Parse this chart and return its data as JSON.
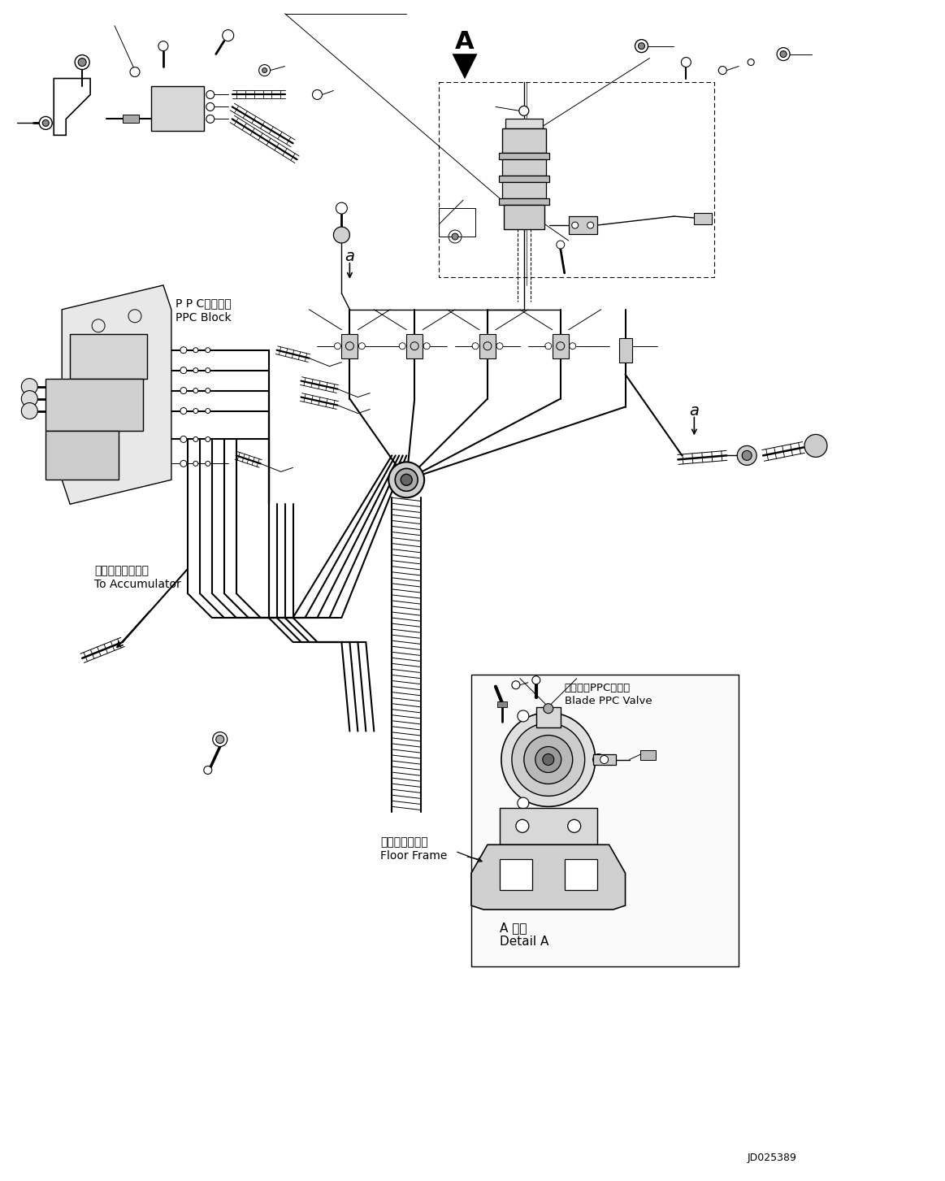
{
  "fig_width": 11.63,
  "fig_height": 14.53,
  "dpi": 100,
  "bg_color": "#ffffff",
  "line_color": "#000000",
  "diagram_id": "JD025389",
  "labels": {
    "ppc_block_ja": "P P Cブロック",
    "ppc_block_en": "PPC Block",
    "accumulator_ja": "アキュムレータへ",
    "accumulator_en": "To Accumulator",
    "floor_frame_ja": "フロアフレーム",
    "floor_frame_en": "Floor Frame",
    "blade_ppc_ja": "ブレードPPCバルブ",
    "blade_ppc_en": "Blade PPC Valve",
    "detail_a_ja": "A 詳細",
    "detail_a_en": "Detail A",
    "sec_A": "A",
    "sec_a": "a",
    "sec_a2": "a"
  },
  "hose_lw": 1.5,
  "main_lw": 1.0,
  "thin_lw": 0.7
}
